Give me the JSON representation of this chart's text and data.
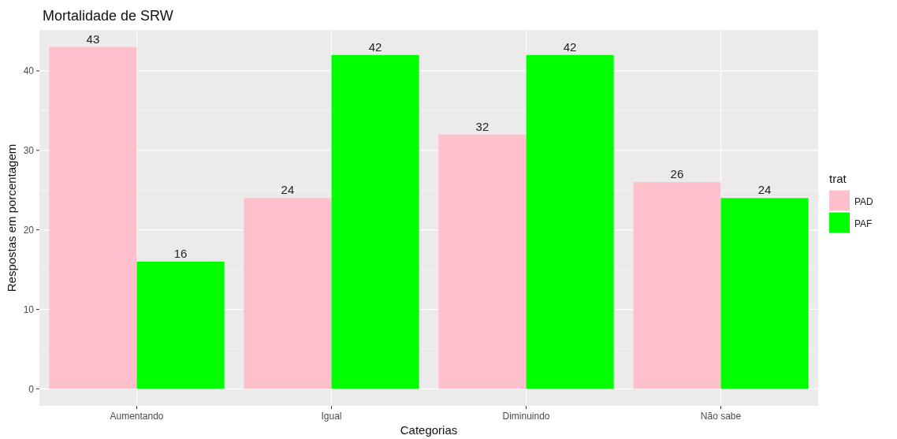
{
  "chart_data": {
    "type": "bar",
    "title": "Mortalidade de SRW",
    "xlabel": "Categorias",
    "ylabel": "Respostas em porcentagem",
    "legend_title": "trat",
    "categories": [
      "Aumentando",
      "Igual",
      "Diminuindo",
      "Não sabe"
    ],
    "series": [
      {
        "name": "PAD",
        "color": "#ffc0cb",
        "values": [
          43,
          24,
          32,
          26
        ]
      },
      {
        "name": "PAF",
        "color": "#00ff00",
        "values": [
          16,
          42,
          42,
          24
        ]
      }
    ],
    "ylim": [
      -2.15,
      45.15
    ],
    "yticks": [
      0,
      10,
      20,
      30,
      40
    ],
    "grid": true,
    "legend": "right",
    "data_labels": true
  }
}
